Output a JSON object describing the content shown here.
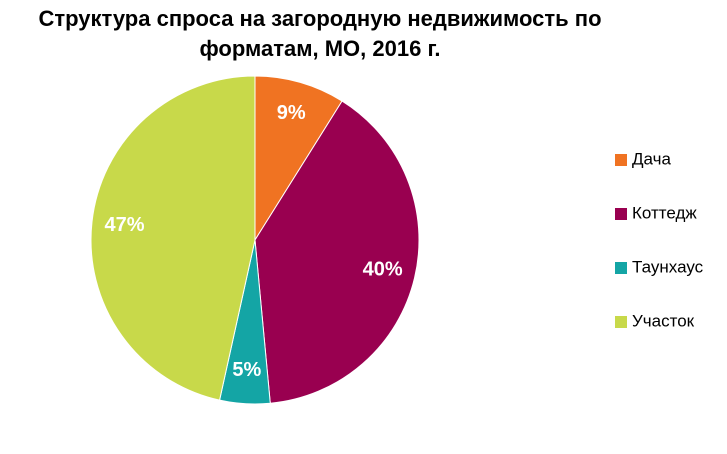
{
  "chart_data": {
    "type": "pie",
    "title": "Структура  спроса на загородную недвижимость по форматам, МО, 2016 г.",
    "categories": [
      "Дача",
      "Коттедж",
      "Таунхаус",
      "Участок"
    ],
    "values": [
      9,
      40,
      5,
      47
    ],
    "value_labels": [
      "9%",
      "40%",
      "5%",
      "47%"
    ],
    "colors": [
      "#f07322",
      "#990050",
      "#14a5a5",
      "#c8d94a"
    ],
    "legend": "right"
  }
}
